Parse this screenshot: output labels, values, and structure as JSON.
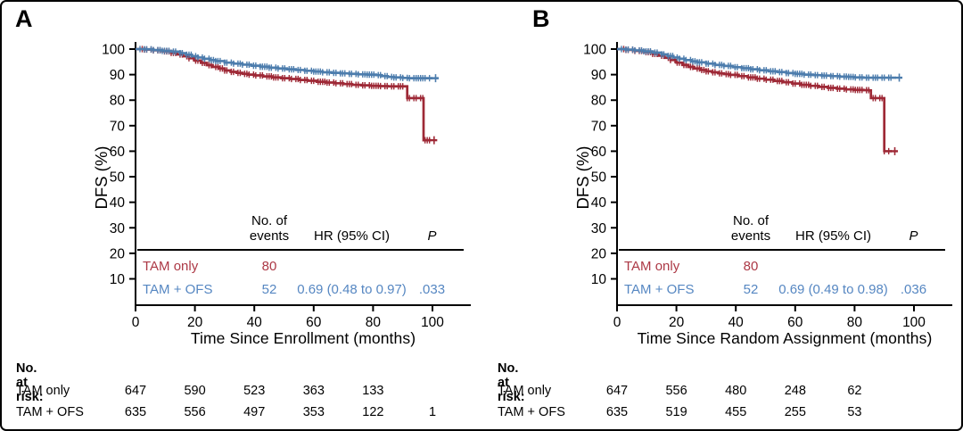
{
  "chart_data": [
    {
      "type": "line",
      "panel_label": "A",
      "xlabel": "Time Since Enrollment (months)",
      "ylabel": "DFS (%)",
      "x_ticks": [
        0,
        20,
        40,
        60,
        80,
        100
      ],
      "y_ticks": [
        100,
        90,
        80,
        70,
        60,
        50,
        40,
        30,
        20,
        10
      ],
      "xlim": [
        0,
        113
      ],
      "ylim": [
        0,
        103
      ],
      "series": [
        {
          "name": "TAM only",
          "color": "#9E2936",
          "label_color": "#AC3845",
          "points": [
            [
              0,
              100
            ],
            [
              3,
              99.8
            ],
            [
              6,
              99.5
            ],
            [
              9,
              99.1
            ],
            [
              12,
              98.5
            ],
            [
              14,
              97.9
            ],
            [
              16,
              97.2
            ],
            [
              18,
              96.4
            ],
            [
              20,
              95.5
            ],
            [
              22,
              94.6
            ],
            [
              24,
              93.7
            ],
            [
              26,
              93.0
            ],
            [
              28,
              92.4
            ],
            [
              30,
              91.6
            ],
            [
              32,
              91.1
            ],
            [
              34,
              90.7
            ],
            [
              36,
              90.3
            ],
            [
              38,
              90.0
            ],
            [
              40,
              89.7
            ],
            [
              43,
              89.3
            ],
            [
              46,
              88.9
            ],
            [
              49,
              88.6
            ],
            [
              52,
              88.3
            ],
            [
              55,
              87.9
            ],
            [
              58,
              87.6
            ],
            [
              61,
              87.2
            ],
            [
              64,
              86.9
            ],
            [
              67,
              86.6
            ],
            [
              70,
              86.3
            ],
            [
              73,
              86.0
            ],
            [
              76,
              85.8
            ],
            [
              79,
              85.6
            ],
            [
              82,
              85.5
            ],
            [
              85,
              85.4
            ],
            [
              91.5,
              85.4
            ],
            [
              91.5,
              80.8
            ],
            [
              97,
              80.8
            ],
            [
              97,
              64.3
            ],
            [
              99.5,
              64.3
            ]
          ]
        },
        {
          "name": "TAM + OFS",
          "color": "#4D7DAD",
          "label_color": "#5687C2",
          "points": [
            [
              0,
              100
            ],
            [
              3,
              99.9
            ],
            [
              6,
              99.6
            ],
            [
              9,
              99.3
            ],
            [
              12,
              99.0
            ],
            [
              15,
              98.4
            ],
            [
              17,
              97.8
            ],
            [
              19,
              97.2
            ],
            [
              21,
              96.7
            ],
            [
              23,
              96.2
            ],
            [
              25,
              95.7
            ],
            [
              27,
              95.3
            ],
            [
              30,
              94.7
            ],
            [
              33,
              94.3
            ],
            [
              36,
              93.9
            ],
            [
              39,
              93.5
            ],
            [
              42,
              93.1
            ],
            [
              45,
              92.7
            ],
            [
              48,
              92.4
            ],
            [
              51,
              92.1
            ],
            [
              54,
              91.8
            ],
            [
              57,
              91.5
            ],
            [
              60,
              91.2
            ],
            [
              63,
              90.9
            ],
            [
              66,
              90.7
            ],
            [
              69,
              90.5
            ],
            [
              72,
              90.3
            ],
            [
              75,
              90.1
            ],
            [
              78,
              90.0
            ],
            [
              81,
              89.8
            ],
            [
              83,
              89.4
            ],
            [
              85,
              89.1
            ],
            [
              87,
              88.9
            ],
            [
              90,
              88.7
            ],
            [
              92,
              88.6
            ],
            [
              100,
              88.6
            ]
          ]
        }
      ],
      "stats_table": {
        "events_header": [
          "No. of",
          "events"
        ],
        "hr_header": "HR (95% CI)",
        "p_header": "P",
        "rows": [
          {
            "name": "TAM only",
            "events": "80",
            "hr": "",
            "p": ""
          },
          {
            "name": "TAM + OFS",
            "events": "52",
            "hr": "0.69 (0.48 to 0.97)",
            "p": ".033"
          }
        ]
      },
      "at_risk": {
        "title": "No. at risk:",
        "rows": [
          {
            "name": "TAM only",
            "counts": [
              "647",
              "590",
              "523",
              "363",
              "133"
            ]
          },
          {
            "name": "TAM + OFS",
            "counts": [
              "635",
              "556",
              "497",
              "353",
              "122",
              "1"
            ]
          }
        ]
      }
    },
    {
      "type": "line",
      "panel_label": "B",
      "xlabel": "Time Since Random Assignment (months)",
      "ylabel": "DFS (%)",
      "x_ticks": [
        0,
        20,
        40,
        60,
        80,
        100
      ],
      "y_ticks": [
        100,
        90,
        80,
        70,
        60,
        50,
        40,
        30,
        20,
        10
      ],
      "xlim": [
        0,
        111
      ],
      "ylim": [
        0,
        103
      ],
      "series": [
        {
          "name": "TAM only",
          "color": "#9E2936",
          "label_color": "#AC3845",
          "points": [
            [
              0,
              100
            ],
            [
              3,
              99.7
            ],
            [
              6,
              99.3
            ],
            [
              9,
              98.8
            ],
            [
              12,
              98.1
            ],
            [
              14,
              97.4
            ],
            [
              16,
              96.6
            ],
            [
              18,
              95.7
            ],
            [
              20,
              94.7
            ],
            [
              22,
              93.8
            ],
            [
              24,
              93.0
            ],
            [
              26,
              92.4
            ],
            [
              28,
              91.8
            ],
            [
              30,
              91.3
            ],
            [
              32,
              90.9
            ],
            [
              34,
              90.5
            ],
            [
              36,
              90.2
            ],
            [
              38,
              89.9
            ],
            [
              41,
              89.4
            ],
            [
              44,
              88.9
            ],
            [
              47,
              88.4
            ],
            [
              50,
              88.0
            ],
            [
              53,
              87.5
            ],
            [
              56,
              87.0
            ],
            [
              59,
              86.5
            ],
            [
              62,
              86.0
            ],
            [
              65,
              85.6
            ],
            [
              68,
              85.2
            ],
            [
              71,
              84.8
            ],
            [
              74,
              84.5
            ],
            [
              77,
              84.2
            ],
            [
              80,
              84.0
            ],
            [
              83,
              83.9
            ],
            [
              85,
              83.8
            ],
            [
              85.5,
              80.8
            ],
            [
              90,
              80.8
            ],
            [
              90,
              60.0
            ],
            [
              92.5,
              60.0
            ]
          ]
        },
        {
          "name": "TAM + OFS",
          "color": "#4D7DAD",
          "label_color": "#5687C2",
          "points": [
            [
              0,
              100
            ],
            [
              3,
              99.8
            ],
            [
              6,
              99.5
            ],
            [
              9,
              99.1
            ],
            [
              12,
              98.6
            ],
            [
              15,
              97.9
            ],
            [
              17,
              97.3
            ],
            [
              19,
              96.7
            ],
            [
              21,
              96.2
            ],
            [
              23,
              95.7
            ],
            [
              25,
              95.2
            ],
            [
              27,
              94.8
            ],
            [
              30,
              94.3
            ],
            [
              33,
              93.8
            ],
            [
              36,
              93.4
            ],
            [
              39,
              92.9
            ],
            [
              42,
              92.5
            ],
            [
              45,
              92.1
            ],
            [
              48,
              91.7
            ],
            [
              51,
              91.3
            ],
            [
              54,
              91.0
            ],
            [
              57,
              90.6
            ],
            [
              60,
              90.3
            ],
            [
              63,
              90.0
            ],
            [
              66,
              89.8
            ],
            [
              69,
              89.6
            ],
            [
              72,
              89.4
            ],
            [
              75,
              89.2
            ],
            [
              78,
              89.1
            ],
            [
              80,
              88.9
            ],
            [
              83,
              88.8
            ],
            [
              94,
              88.8
            ]
          ]
        }
      ],
      "stats_table": {
        "events_header": [
          "No. of",
          "events"
        ],
        "hr_header": "HR (95% CI)",
        "p_header": "P",
        "rows": [
          {
            "name": "TAM only",
            "events": "80",
            "hr": "",
            "p": ""
          },
          {
            "name": "TAM + OFS",
            "events": "52",
            "hr": "0.69 (0.49 to 0.98)",
            "p": ".036"
          }
        ]
      },
      "at_risk": {
        "title": "No. at risk:",
        "rows": [
          {
            "name": "TAM only",
            "counts": [
              "647",
              "556",
              "480",
              "248",
              "62"
            ]
          },
          {
            "name": "TAM + OFS",
            "counts": [
              "635",
              "519",
              "455",
              "255",
              "53"
            ]
          }
        ]
      }
    }
  ]
}
